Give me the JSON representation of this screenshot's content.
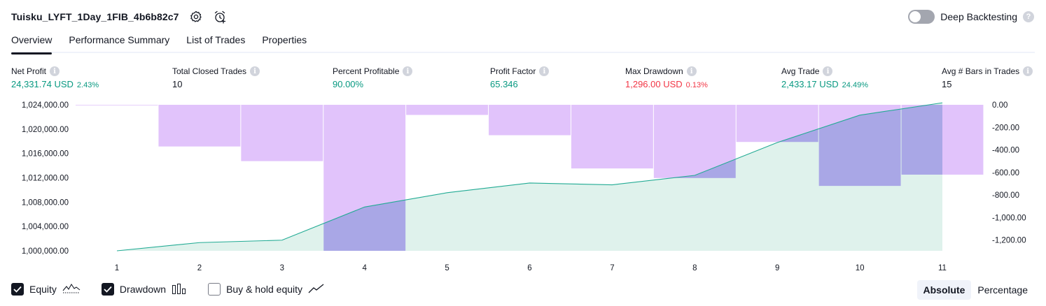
{
  "header": {
    "title": "Tuisku_LYFT_1Day_1FIB_4b6b82c7",
    "settings_icon": "gear-icon",
    "alert_icon": "alarm-clock-plus-icon"
  },
  "deep_backtesting": {
    "label": "Deep Backtesting",
    "enabled": false,
    "help": "?"
  },
  "tabs": [
    {
      "label": "Overview",
      "active": true
    },
    {
      "label": "Performance Summary",
      "active": false
    },
    {
      "label": "List of Trades",
      "active": false
    },
    {
      "label": "Properties",
      "active": false
    }
  ],
  "metrics": [
    {
      "label": "Net Profit",
      "value": "24,331.74 USD",
      "pct": "2.43%",
      "tone": "green"
    },
    {
      "label": "Total Closed Trades",
      "value": "10",
      "pct": "",
      "tone": "neutral"
    },
    {
      "label": "Percent Profitable",
      "value": "90.00%",
      "pct": "",
      "tone": "green"
    },
    {
      "label": "Profit Factor",
      "value": "65.346",
      "pct": "",
      "tone": "green"
    },
    {
      "label": "Max Drawdown",
      "value": "1,296.00 USD",
      "pct": "0.13%",
      "tone": "red"
    },
    {
      "label": "Avg Trade",
      "value": "2,433.17 USD",
      "pct": "24.49%",
      "tone": "green"
    },
    {
      "label": "Avg # Bars in Trades",
      "value": "15",
      "pct": "",
      "tone": "neutral"
    }
  ],
  "chart_data": {
    "type": "area",
    "x": [
      1,
      2,
      3,
      4,
      5,
      6,
      7,
      8,
      9,
      10,
      11
    ],
    "y_left_ticks": [
      "1,024,000.00",
      "1,020,000.00",
      "1,016,000.00",
      "1,012,000.00",
      "1,008,000.00",
      "1,004,000.00",
      "1,000,000.00"
    ],
    "y_right_ticks": [
      "0.00",
      "-200.00",
      "-400.00",
      "-600.00",
      "-800.00",
      "-1,000.00",
      "-1,200.00"
    ],
    "y_left_range": [
      1000000,
      1024000
    ],
    "y_right_range": [
      -1296,
      0
    ],
    "series": [
      {
        "name": "Equity",
        "axis": "left",
        "values": [
          1000000,
          1001350,
          1001750,
          1007200,
          1009550,
          1011150,
          1010850,
          1012400,
          1017800,
          1022300,
          1024331.74
        ]
      },
      {
        "name": "Drawdown",
        "axis": "right",
        "values": [
          0,
          -370,
          -500,
          -1296,
          -90,
          -270,
          -565,
          -650,
          -330,
          -720,
          -620
        ]
      }
    ],
    "colors": {
      "equity_line": "#22ab94",
      "equity_fill": "#dff2ec",
      "drawdown": "#e1c3fb",
      "drawdown_overlap": "#a9a7e6",
      "grid": "#e0e3eb"
    },
    "grid": false,
    "legend": "bottom-left"
  },
  "legend": [
    {
      "label": "Equity",
      "checked": true,
      "icon": "equity-line-icon"
    },
    {
      "label": "Drawdown",
      "checked": true,
      "icon": "drawdown-bars-icon"
    },
    {
      "label": "Buy & hold equity",
      "checked": false,
      "icon": "buy-hold-line-icon"
    }
  ],
  "scale_toggle": {
    "options": [
      "Absolute",
      "Percentage"
    ],
    "selected": "Absolute"
  }
}
